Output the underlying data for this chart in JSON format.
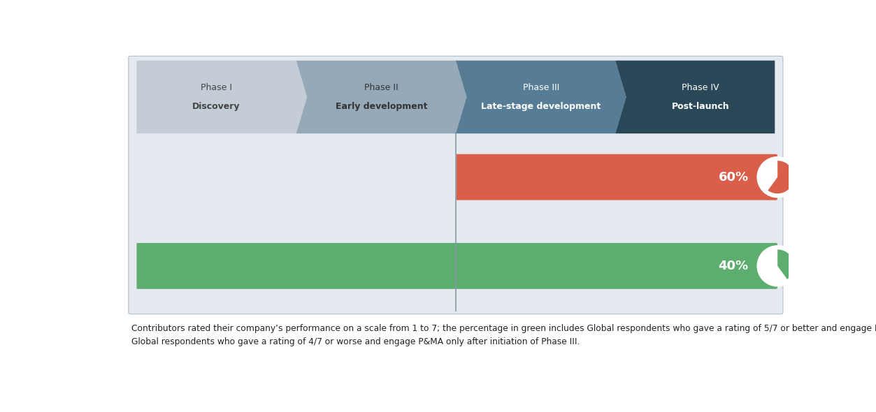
{
  "bg_color": "#e4eaf0",
  "white_bg": "#ffffff",
  "phases": [
    {
      "label_top": "Phase I",
      "label_bot": "Discovery",
      "color": "#c4cdd6",
      "text_color": "#444444"
    },
    {
      "label_top": "Phase II",
      "label_bot": "Early development",
      "color": "#96a9b8",
      "text_color": "#333333"
    },
    {
      "label_top": "Phase III",
      "label_bot": "Late-stage development",
      "color": "#567d95",
      "text_color": "#ffffff"
    },
    {
      "label_top": "Phase IV",
      "label_bot": "Post-launch",
      "color": "#2b4859",
      "text_color": "#ffffff"
    }
  ],
  "bars": [
    {
      "pct": "60%",
      "color": "#d95f4b",
      "text_color": "#ffffff",
      "pie_pct": 60
    },
    {
      "pct": "40%",
      "color": "#5cad6e",
      "text_color": "#ffffff",
      "pie_pct": 40
    }
  ],
  "footnote": "Contributors rated their company’s performance on a scale from 1 to 7; the percentage in green includes Global respondents who gave a rating of 5/7 or better and engage P&MA systematically during or before Phase II, while the percentage in red includes\nGlobal respondents who gave a rating of 4/7 or worse and engage P&MA only after initiation of Phase III."
}
